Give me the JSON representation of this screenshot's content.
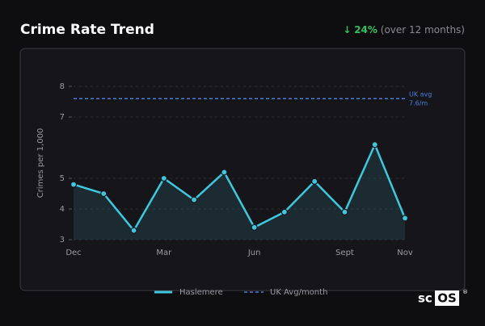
{
  "header": {
    "title": "Crime Rate Trend",
    "change_arrow": "↓",
    "change": "24%",
    "change_note": "(over 12 months)"
  },
  "chart_data": {
    "type": "line",
    "categories": [
      "Dec",
      null,
      null,
      "Mar",
      null,
      null,
      "Jun",
      null,
      null,
      "Sept",
      null,
      "Nov"
    ],
    "series": [
      {
        "name": "Haslemere",
        "color": "#3ec8e0",
        "values": [
          4.8,
          4.5,
          3.3,
          5.0,
          4.3,
          5.2,
          3.4,
          3.9,
          4.9,
          3.9,
          6.1,
          3.7
        ]
      }
    ],
    "reference": {
      "name": "UK Avg/month",
      "short_name": "UK avg",
      "value": 7.6,
      "label": "7.6/m",
      "color": "#4a7fe0"
    },
    "ylabel": "Crimes per 1,000",
    "ylim": [
      3,
      8
    ],
    "yticks": [
      3,
      4,
      5,
      7,
      8
    ],
    "grid": true
  },
  "logo": {
    "prefix": "sc",
    "boxed": "OS",
    "mark": "®"
  }
}
